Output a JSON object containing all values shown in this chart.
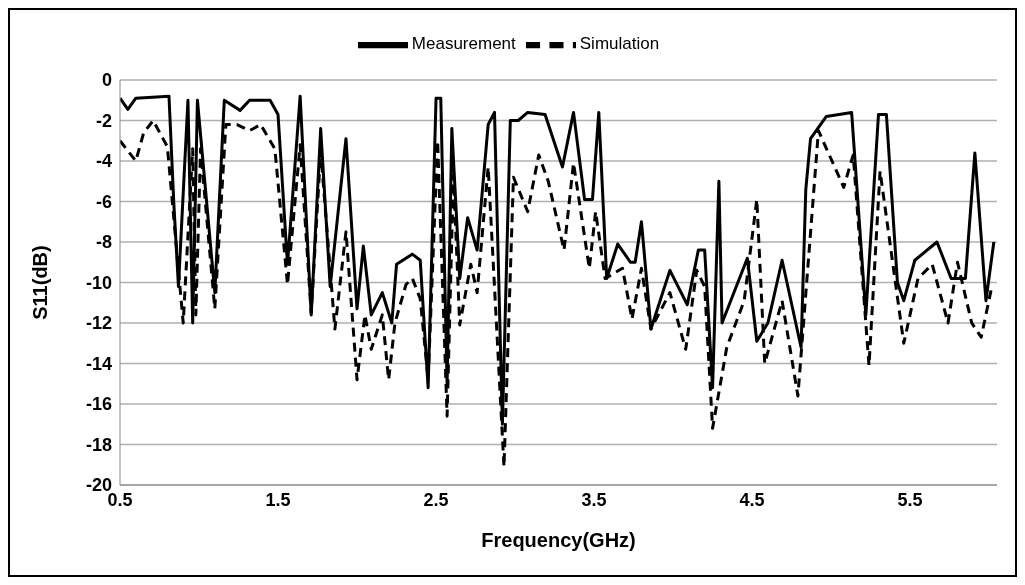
{
  "chart_data": {
    "type": "line",
    "xlabel": "Frequency(GHz)",
    "ylabel": "S11(dB)",
    "xlim": [
      0.5,
      6.05
    ],
    "xticks": [
      0.5,
      1.5,
      2.5,
      3.5,
      4.5,
      5.5
    ],
    "ylim": [
      -20,
      0
    ],
    "yticks": [
      -20,
      -18,
      -16,
      -14,
      -12,
      -10,
      -8,
      -6,
      -4,
      -2,
      0
    ],
    "grid": "y",
    "legend": "top",
    "marker": "none",
    "series": [
      {
        "name": "Measurement",
        "color": "#000000",
        "line_style": "solid",
        "x": [
          0.5,
          0.55,
          0.6,
          0.81,
          0.84,
          0.87,
          0.93,
          0.96,
          0.99,
          1.1,
          1.16,
          1.26,
          1.32,
          1.45,
          1.5,
          1.56,
          1.64,
          1.71,
          1.77,
          1.83,
          1.93,
          2.0,
          2.04,
          2.09,
          2.16,
          2.22,
          2.25,
          2.35,
          2.4,
          2.45,
          2.5,
          2.53,
          2.57,
          2.6,
          2.65,
          2.7,
          2.76,
          2.83,
          2.87,
          2.92,
          2.97,
          3.02,
          3.08,
          3.19,
          3.3,
          3.37,
          3.44,
          3.49,
          3.53,
          3.58,
          3.65,
          3.73,
          3.76,
          3.8,
          3.86,
          3.98,
          4.09,
          4.16,
          4.2,
          4.25,
          4.29,
          4.31,
          4.47,
          4.53,
          4.6,
          4.69,
          4.81,
          4.84,
          4.87,
          4.97,
          5.13,
          5.22,
          5.3,
          5.35,
          5.42,
          5.46,
          5.53,
          5.67,
          5.76,
          5.85,
          5.91,
          5.98,
          6.03
        ],
        "values": [
          -0.9,
          -1.45,
          -0.9,
          -0.8,
          -6,
          -10.2,
          -1,
          -12,
          -1,
          -10.5,
          -1,
          -1.5,
          -1,
          -1,
          -1.7,
          -9.1,
          -0.8,
          -11.6,
          -2.4,
          -10.2,
          -2.9,
          -11.3,
          -8.2,
          -11.6,
          -10.5,
          -12,
          -9.1,
          -8.6,
          -8.9,
          -15.2,
          -0.9,
          -0.9,
          -15,
          -2.4,
          -9.8,
          -6.8,
          -8.4,
          -2.2,
          -1.6,
          -17,
          -2,
          -2,
          -1.6,
          -1.7,
          -4.3,
          -1.6,
          -5.9,
          -5.9,
          -1.6,
          -9.8,
          -8.1,
          -9,
          -9,
          -7,
          -12.3,
          -9.4,
          -11.1,
          -8.4,
          -8.4,
          -15.2,
          -5,
          -12,
          -8.8,
          -12.9,
          -12,
          -8.9,
          -13.2,
          -5.4,
          -2.9,
          -1.8,
          -1.6,
          -11.6,
          -1.7,
          -1.7,
          -10,
          -10.9,
          -8.9,
          -8,
          -9.8,
          -9.8,
          -3.6,
          -10.9,
          -8
        ]
      },
      {
        "name": "Simulation",
        "color": "#000000",
        "line_style": "dashed",
        "x": [
          0.5,
          0.6,
          0.65,
          0.71,
          0.8,
          0.9,
          0.96,
          0.98,
          1.01,
          1.1,
          1.17,
          1.24,
          1.32,
          1.39,
          1.48,
          1.56,
          1.64,
          1.71,
          1.77,
          1.86,
          1.93,
          2.0,
          2.05,
          2.09,
          2.16,
          2.2,
          2.24,
          2.31,
          2.35,
          2.4,
          2.45,
          2.51,
          2.57,
          2.61,
          2.65,
          2.72,
          2.76,
          2.83,
          2.93,
          2.99,
          3.08,
          3.15,
          3.21,
          3.31,
          3.37,
          3.47,
          3.51,
          3.57,
          3.68,
          3.74,
          3.8,
          3.86,
          3.98,
          4.08,
          4.15,
          4.2,
          4.25,
          4.34,
          4.45,
          4.53,
          4.58,
          4.69,
          4.79,
          4.92,
          5.08,
          5.14,
          5.24,
          5.31,
          5.46,
          5.55,
          5.64,
          5.74,
          5.8,
          5.89,
          5.95,
          6.02
        ],
        "values": [
          -3,
          -4,
          -2.6,
          -2,
          -3.3,
          -12,
          -3.4,
          -11.6,
          -3.4,
          -11.3,
          -2.2,
          -2.2,
          -2.5,
          -2.2,
          -3.4,
          -10.1,
          -3.2,
          -11.5,
          -3.5,
          -12.3,
          -7.5,
          -14.8,
          -11.6,
          -13.3,
          -11.6,
          -14.8,
          -12,
          -10.1,
          -9.8,
          -10.8,
          -14.8,
          -3,
          -16.6,
          -4.7,
          -12.1,
          -9.1,
          -10.5,
          -4.3,
          -19.1,
          -4.8,
          -6.5,
          -3.7,
          -5,
          -8.4,
          -4.1,
          -9.3,
          -6.5,
          -9.8,
          -9.3,
          -11.8,
          -9.3,
          -12.3,
          -10.5,
          -13.3,
          -9.4,
          -10.2,
          -17.2,
          -13.2,
          -10.9,
          -5.9,
          -14,
          -10.9,
          -15.6,
          -2.5,
          -5.3,
          -3.7,
          -14.1,
          -4.5,
          -13,
          -9.8,
          -9.1,
          -12,
          -9,
          -12,
          -12.7,
          -10.1
        ]
      }
    ]
  }
}
